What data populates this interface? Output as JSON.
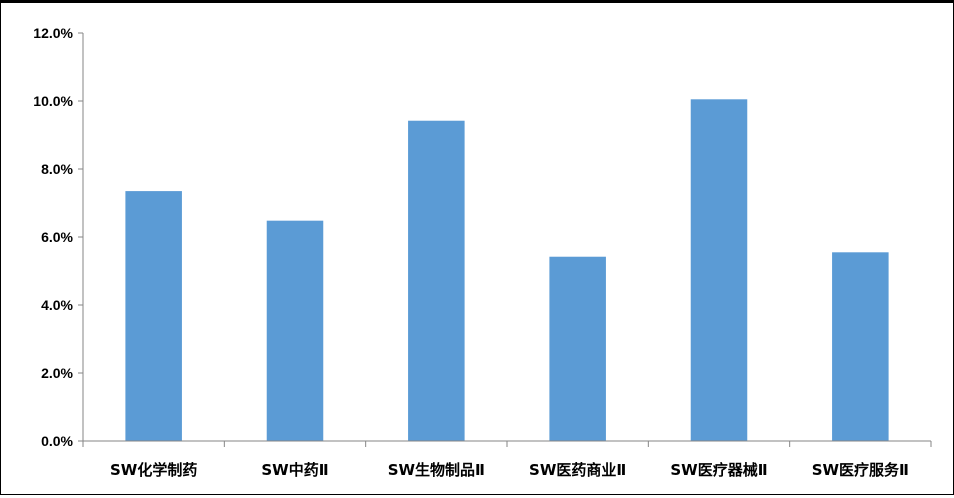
{
  "chart_data": {
    "type": "bar",
    "categories": [
      "SW化学制药",
      "SW中药Ⅱ",
      "SW生物制品Ⅱ",
      "SW医药商业Ⅱ",
      "SW医疗器械Ⅱ",
      "SW医疗服务Ⅱ"
    ],
    "values": [
      7.35,
      6.48,
      9.42,
      5.42,
      10.05,
      5.55
    ],
    "value_unit": "%",
    "ylim": [
      0,
      12
    ],
    "yticks": [
      "0.0%",
      "2.0%",
      "4.0%",
      "6.0%",
      "8.0%",
      "10.0%",
      "12.0%"
    ],
    "ytick_values": [
      0,
      2,
      4,
      6,
      8,
      10,
      12
    ],
    "title": "",
    "xlabel": "",
    "ylabel": "",
    "grid": false,
    "legend": "none",
    "bar_color": "#5B9BD5",
    "axis_color": "#868686"
  }
}
